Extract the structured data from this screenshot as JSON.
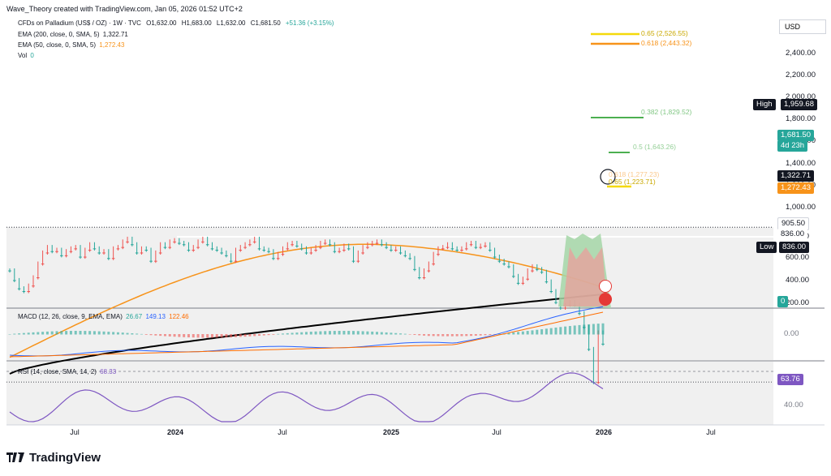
{
  "header": {
    "credit": "Wave_Theory created with TradingView.com, Jan 05, 2026 01:52 UTC+2"
  },
  "legend": {
    "symbol": "CFDs on Palladium (US$ / OZ) · 1W · TVC",
    "open": "O1,632.00",
    "high": "H1,683.00",
    "low": "L1,632.00",
    "close": "C1,681.50",
    "change": "+51.36 (+3.15%)",
    "ema200_label": "EMA (200, close, 0, SMA, 5)",
    "ema200_value": "1,322.71",
    "ema50_label": "EMA (50, close, 0, SMA, 5)",
    "ema50_value": "1,272.43",
    "vol_label": "Vol",
    "vol_value": "0",
    "macd_label": "MACD (12, 26, close, 9, EMA, EMA)",
    "macd_v1": "26.67",
    "macd_v2": "149.13",
    "macd_v3": "122.46",
    "rsi_label": "RSI (14, close, SMA, 14, 2)",
    "rsi_v": "68.33"
  },
  "price_axis": {
    "currency": "USD",
    "ticks": [
      "2,400.00",
      "2,200.00",
      "2,000.00",
      "1,800.00",
      "1,600.00",
      "1,400.00",
      "1,200.00",
      "1,000.00",
      "800.00",
      "600.00",
      "400.00",
      "200.00"
    ],
    "high_tag": "High",
    "high_value": "1,959.68",
    "last_value": "1,681.50",
    "countdown": "4d 23h",
    "ema200_tag": "1,322.71",
    "ema50_tag": "1,272.43",
    "level_905": "905.50",
    "level_836": "836.00",
    "low_tag": "Low",
    "low_value": "836.00",
    "vol_tag": "0",
    "macd_tick": "0.00",
    "rsi_value": "63.76",
    "rsi_tick": "40.00"
  },
  "fib_labels": {
    "f065_top": "0.65 (2,526.55)",
    "f0618_top": "0.618 (2,443.32)",
    "f0382": "0.382 (1,829.52)",
    "f05": "0.5 (1,643.26)",
    "f065_low": "0.65 (1,223.71)",
    "f0618_low": "0.618 (1,277.23)"
  },
  "x_axis": {
    "ticks": [
      "Jul",
      "2024",
      "Jul",
      "2025",
      "Jul",
      "2026",
      "Jul"
    ]
  },
  "brand": "TradingView",
  "colors": {
    "up": "#26a69a",
    "down": "#ef5350",
    "ema200": "#000000",
    "ema50": "#f7931a",
    "macd": "#2962ff",
    "signal": "#ff6d00",
    "rsi": "#7e57c2",
    "fib_gold": "#f5d90a",
    "fib_orange": "#f7931a",
    "fib_green": "#4caf50"
  },
  "chart_data": {
    "type": "candlestick",
    "title": "CFDs on Palladium (US$ / OZ) · 1W · TVC",
    "y_range": [
      700,
      2600
    ],
    "close_series": [
      1150,
      1220,
      1280,
      1300,
      1260,
      1200,
      1100,
      1020,
      980,
      1010,
      1000,
      1040,
      1010,
      990,
      980,
      1050,
      1000,
      960,
      990,
      1020,
      1010,
      1060,
      990,
      980,
      940,
      920,
      960,
      1020,
      990,
      1000,
      1080,
      1020,
      960,
      980,
      940,
      930,
      950,
      960,
      1000,
      980,
      940,
      920,
      960,
      990,
      1000,
      1020,
      1040,
      1080,
      1000,
      980,
      960,
      940,
      920,
      990,
      1000,
      1010,
      1060,
      1030,
      990,
      960,
      950,
      970,
      990,
      1020,
      1000,
      980,
      950,
      940,
      960,
      1010,
      1000,
      970,
      990,
      1080,
      1020,
      980,
      960,
      950,
      940,
      960,
      980,
      1000,
      990,
      1020,
      1040,
      1060,
      1140,
      1200,
      1150,
      1100,
      1030,
      990,
      980,
      960,
      990,
      1000,
      990,
      960,
      950,
      980,
      970,
      960,
      1000,
      1050,
      1080,
      1100,
      1120,
      1190,
      1240,
      1210,
      1150,
      1120,
      1140,
      1160,
      1230,
      1300,
      1380,
      1420,
      1400,
      1380,
      1400,
      1460,
      1560,
      1720,
      1960,
      1600,
      1681.5
    ],
    "ema200": {
      "start": 1900,
      "end": 1322.71
    },
    "ema50": {
      "start": 1780,
      "end": 1272.43
    },
    "levels": {
      "high": 1959.68,
      "last": 1681.5,
      "low": 836.0,
      "support": 905.5
    },
    "macd": {
      "macd": 149.13,
      "signal": 122.46,
      "hist": 26.67
    },
    "rsi": 63.76
  }
}
